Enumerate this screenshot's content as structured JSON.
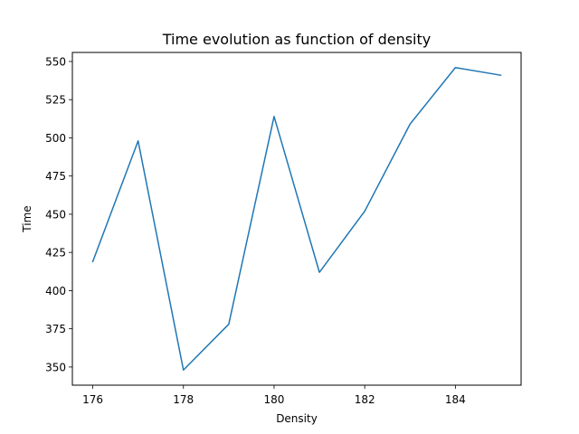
{
  "chart_data": {
    "type": "line",
    "title": "Time evolution as function of density",
    "xlabel": "Density",
    "ylabel": "Time",
    "x": [
      176,
      177,
      178,
      179,
      180,
      181,
      182,
      183,
      184,
      185
    ],
    "series": [
      {
        "values": [
          419,
          498,
          348,
          378,
          514,
          412,
          452,
          509,
          546,
          541
        ],
        "color": "#1f77b4"
      }
    ],
    "xticks": [
      176,
      178,
      180,
      182,
      184
    ],
    "yticks": [
      350,
      375,
      400,
      425,
      450,
      475,
      500,
      525,
      550
    ],
    "xlim": [
      175.55,
      185.45
    ],
    "ylim": [
      338.1,
      555.9
    ],
    "grid": false,
    "legend": "none"
  }
}
